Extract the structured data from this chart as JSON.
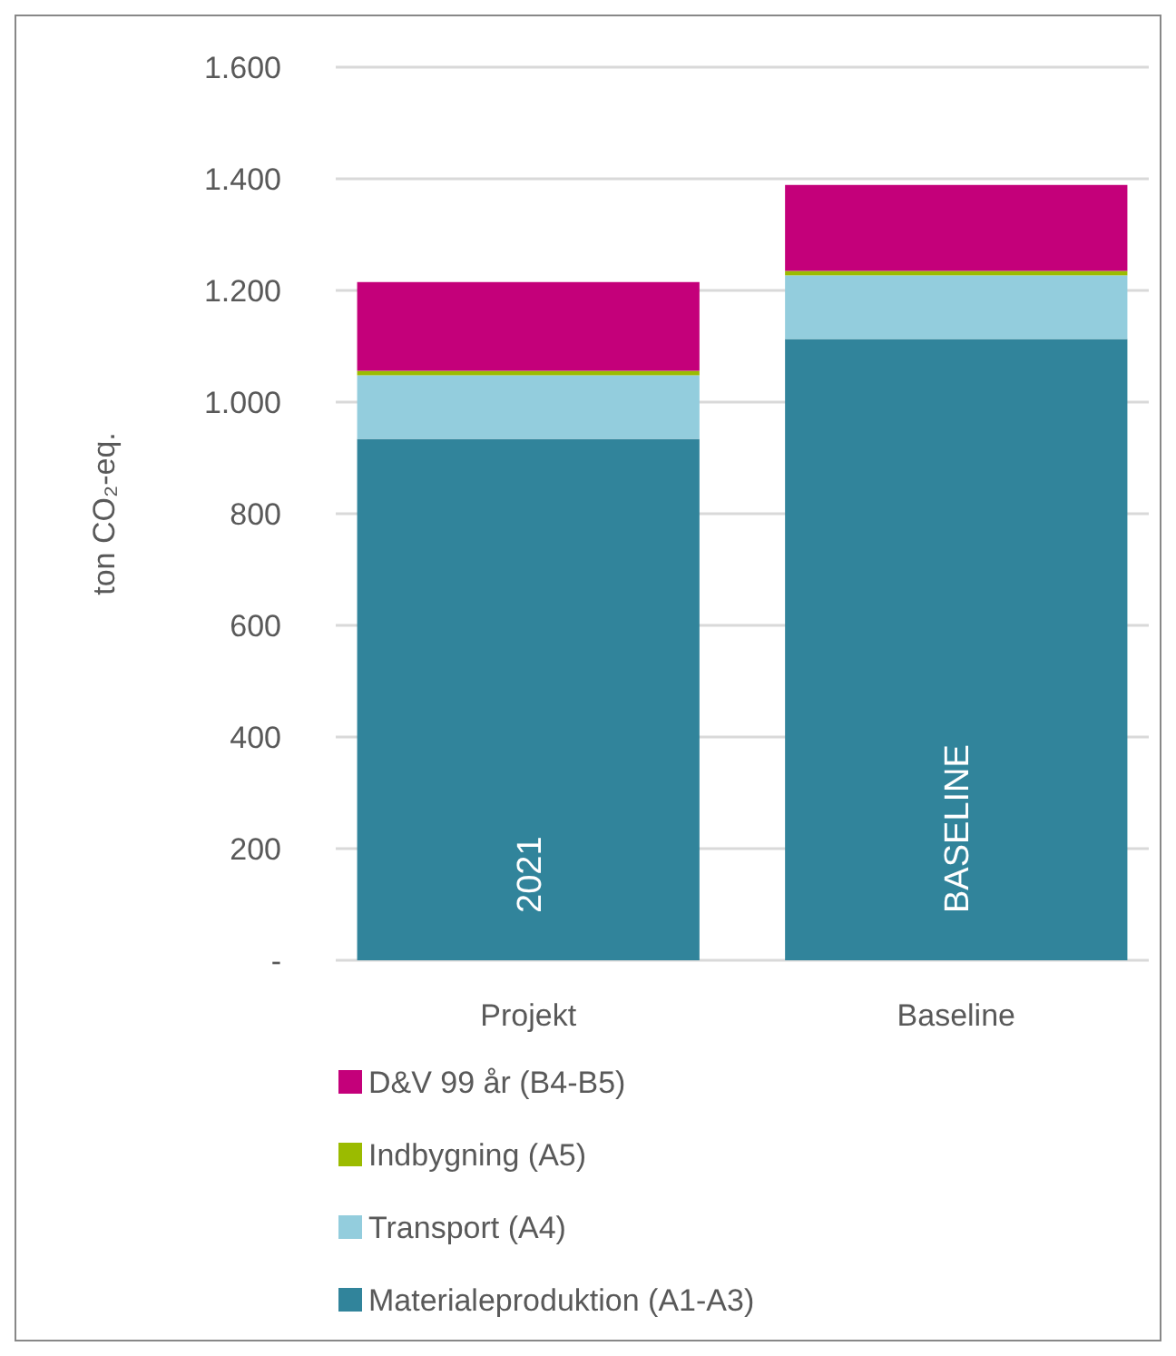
{
  "chart_data": {
    "type": "bar",
    "stacked": true,
    "ylabel": "ton CO₂-eq.",
    "categories": [
      "Projekt",
      "Baseline"
    ],
    "series": [
      {
        "name": "Materialeproduktion (A1-A3)",
        "color": "#31849b",
        "values": [
          934,
          1113
        ]
      },
      {
        "name": "Transport (A4)",
        "color": "#93cddd",
        "values": [
          114,
          114
        ]
      },
      {
        "name": "Indbygning (A5)",
        "color": "#9bbb00",
        "values": [
          8,
          8
        ]
      },
      {
        "name": "D&V 99 år (B4-B5)",
        "color": "#c4007a",
        "values": [
          159,
          154
        ]
      }
    ],
    "ylim": [
      0,
      1600
    ],
    "yticks": [
      {
        "value": 0,
        "label": "-"
      },
      {
        "value": 200,
        "label": "200"
      },
      {
        "value": 400,
        "label": "400"
      },
      {
        "value": 600,
        "label": "600"
      },
      {
        "value": 800,
        "label": "800"
      },
      {
        "value": 1000,
        "label": "1.000"
      },
      {
        "value": 1200,
        "label": "1.200"
      },
      {
        "value": 1400,
        "label": "1.400"
      },
      {
        "value": 1600,
        "label": "1.600"
      }
    ],
    "grid": "y",
    "legend": "bottom",
    "annotations": [
      "2021",
      "BASELINE"
    ]
  }
}
